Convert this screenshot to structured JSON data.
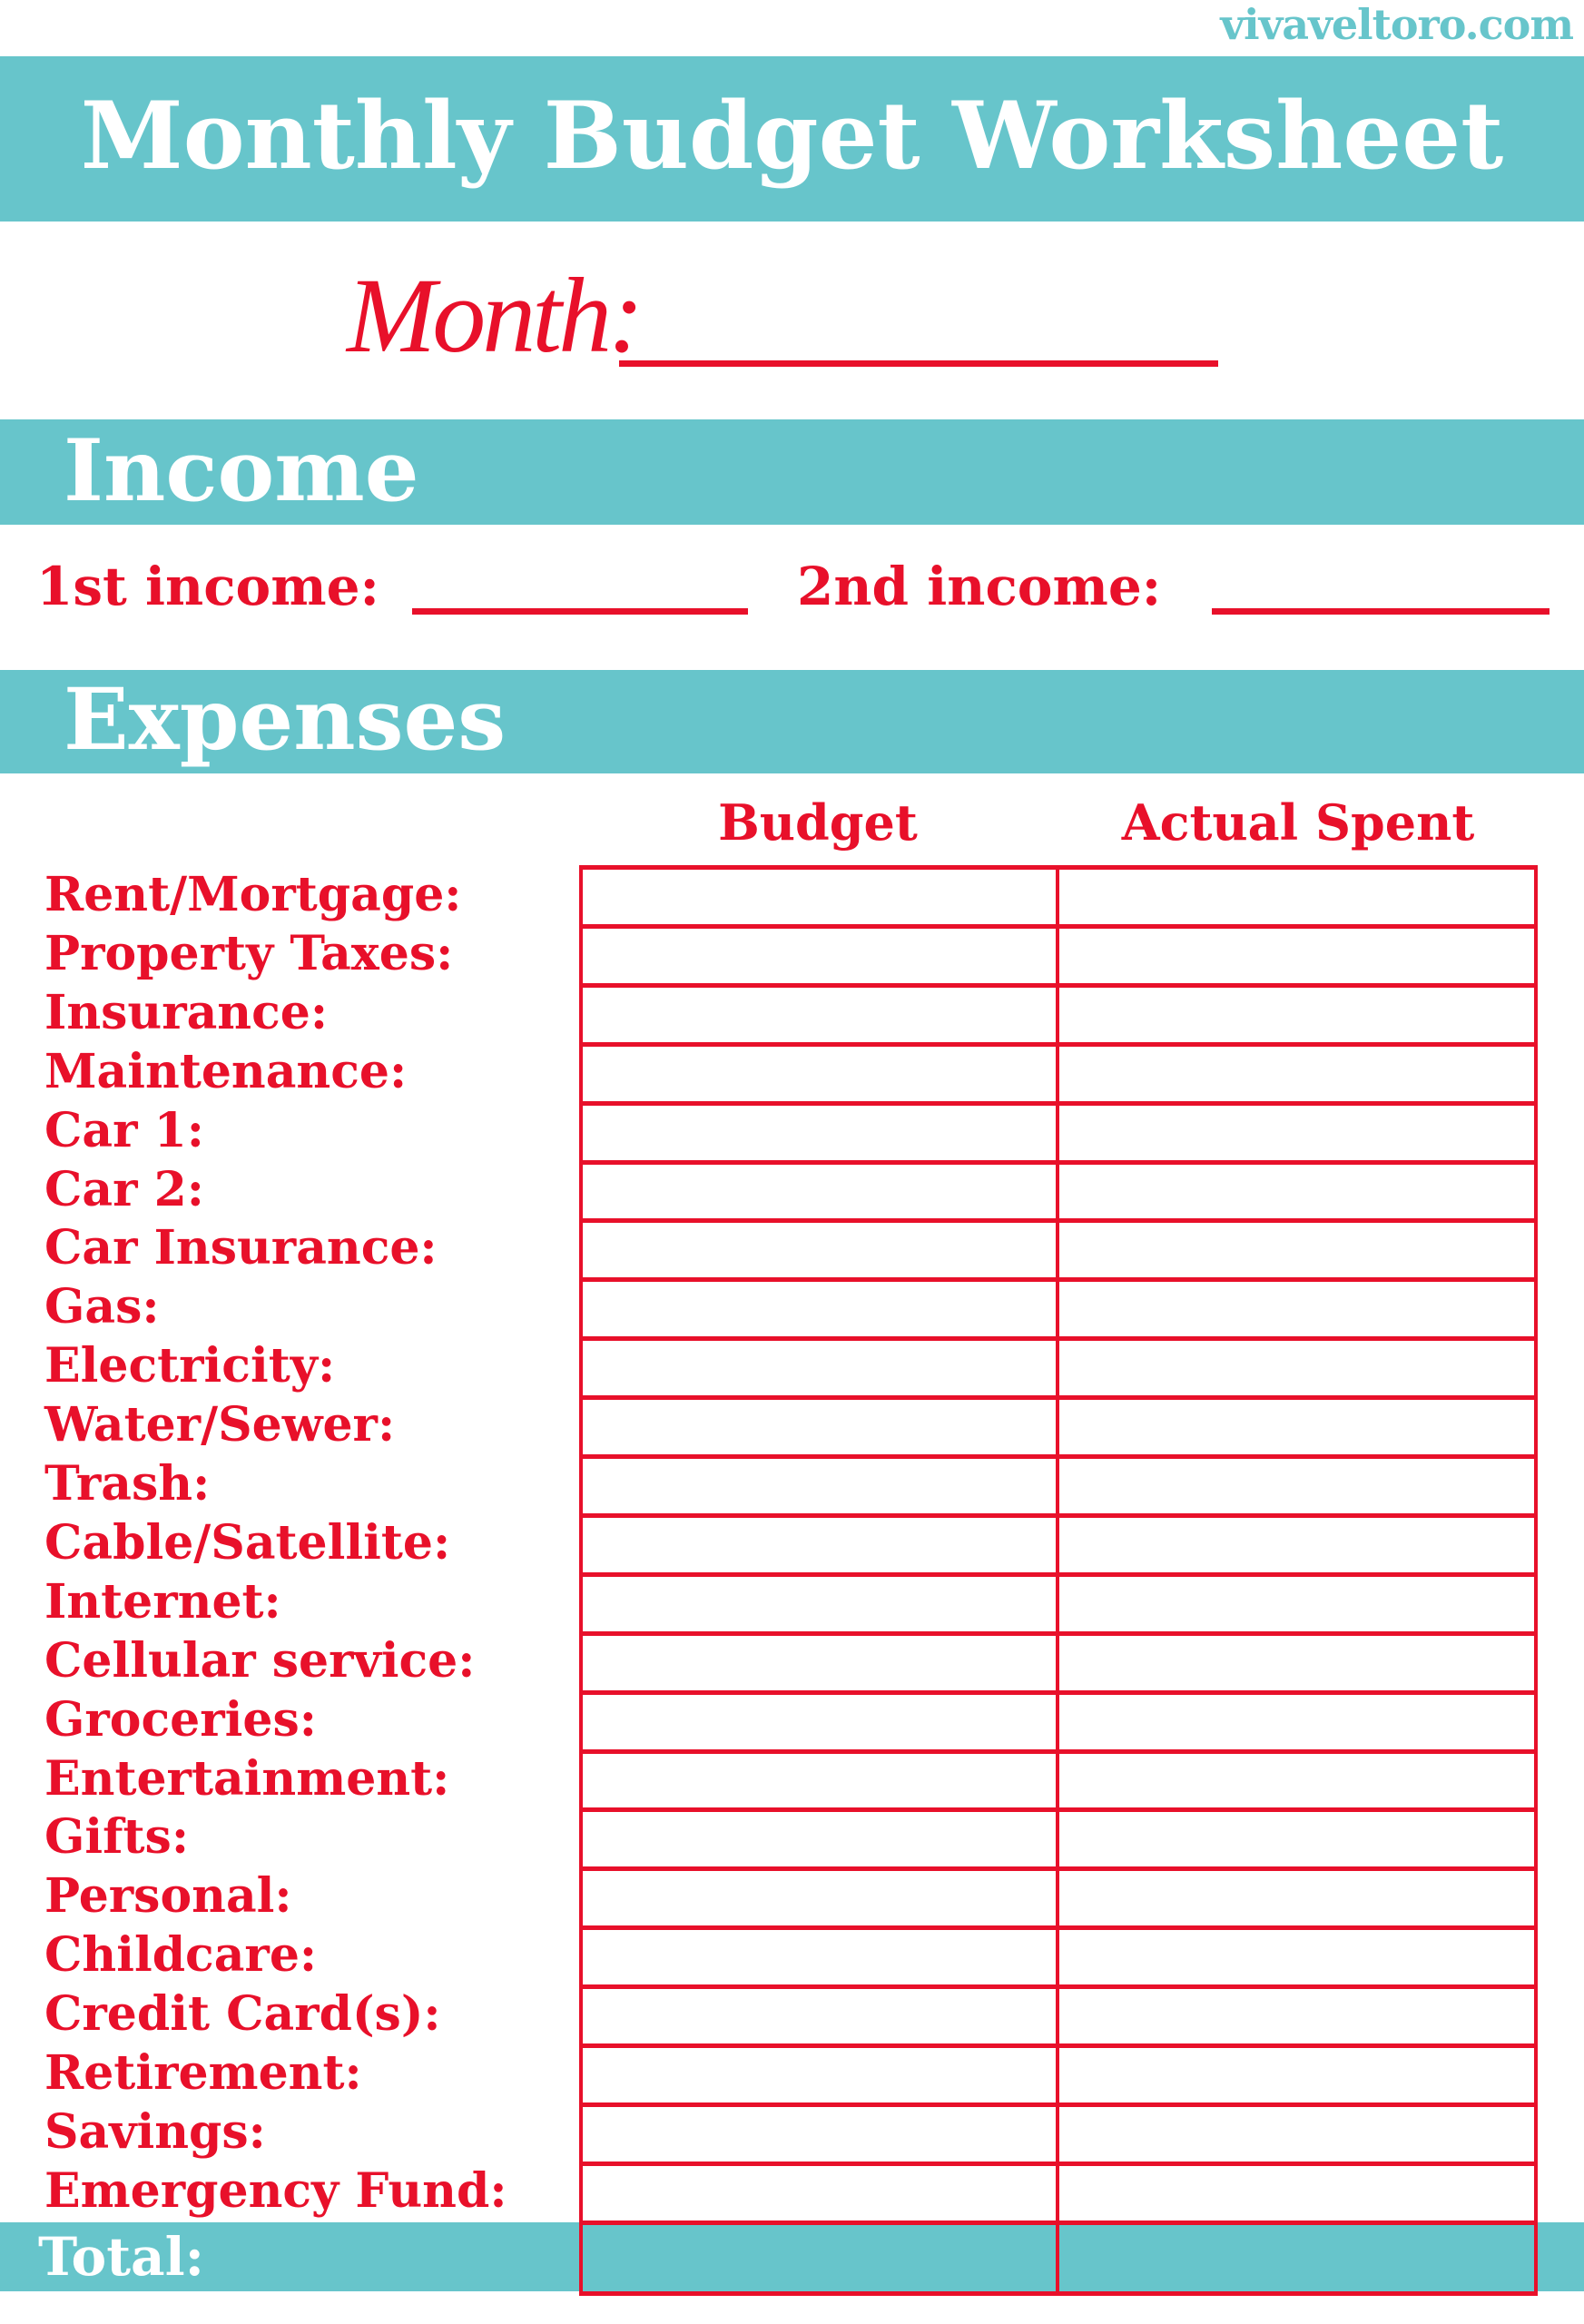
{
  "site": "vivaveltoro.com",
  "title": "Monthly Budget Worksheet",
  "month": {
    "label": "Month:",
    "value": ""
  },
  "income": {
    "heading": "Income",
    "first_label": "1st income:",
    "second_label": "2nd income:",
    "first_value": "",
    "second_value": ""
  },
  "expenses": {
    "heading": "Expenses",
    "columns": [
      "Budget",
      "Actual Spent"
    ],
    "rows": [
      "Rent/Mortgage:",
      "Property Taxes:",
      "Insurance:",
      "Maintenance:",
      "Car 1:",
      "Car 2:",
      "Car Insurance:",
      "Gas:",
      "Electricity:",
      "Water/Sewer:",
      "Trash:",
      "Cable/Satellite:",
      "Internet:",
      "Cellular service:",
      "Groceries:",
      "Entertainment:",
      "Gifts:",
      "Personal:",
      "Childcare:",
      "Credit Card(s):",
      "Retirement:",
      "Savings:",
      "Emergency Fund:"
    ],
    "total_label": "Total:"
  },
  "colors": {
    "teal": "#67C5CB",
    "red": "#E8102A"
  }
}
